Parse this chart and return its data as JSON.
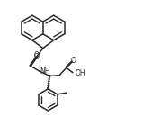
{
  "bg_color": "#ffffff",
  "line_color": "#2a2a2a",
  "line_width": 1.1,
  "figsize": [
    1.69,
    1.39
  ],
  "dpi": 100,
  "xlim": [
    0,
    10
  ],
  "ylim": [
    0,
    8.2
  ]
}
